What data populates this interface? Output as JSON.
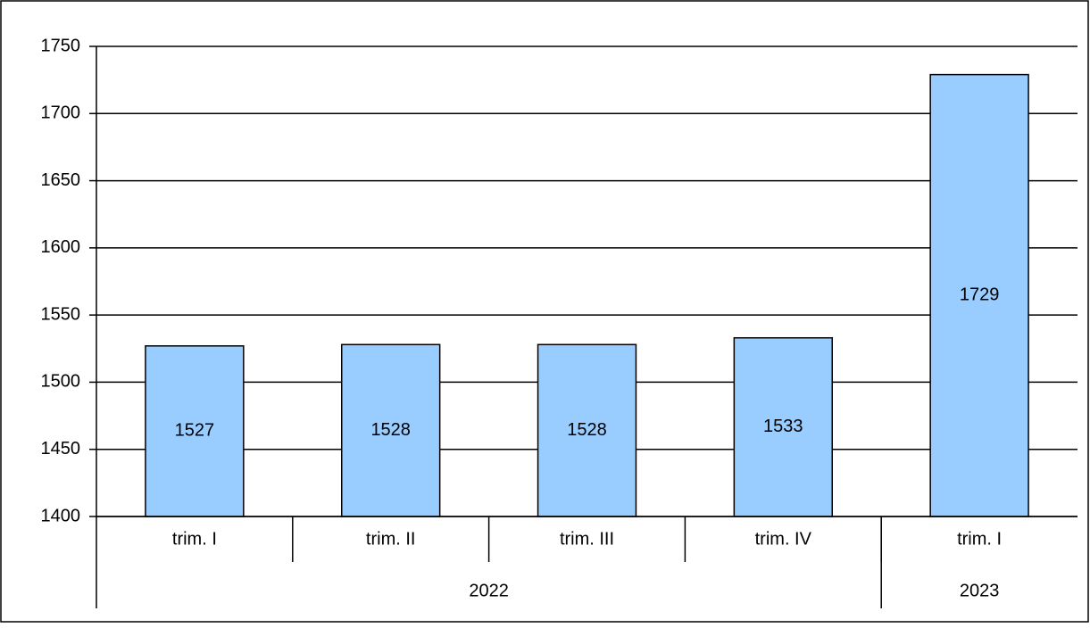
{
  "chart_data": {
    "type": "bar",
    "categories": [
      "trim. I",
      "trim. II",
      "trim. III",
      "trim. IV",
      "trim. I"
    ],
    "groups": [
      {
        "label": "2022",
        "span": 4
      },
      {
        "label": "2023",
        "span": 1
      }
    ],
    "values": [
      1527,
      1528,
      1528,
      1533,
      1729
    ],
    "color": "#99ccff",
    "ylim": [
      1400,
      1750
    ],
    "yticks": [
      1400,
      1450,
      1500,
      1550,
      1600,
      1650,
      1700,
      1750
    ],
    "grid": true
  }
}
